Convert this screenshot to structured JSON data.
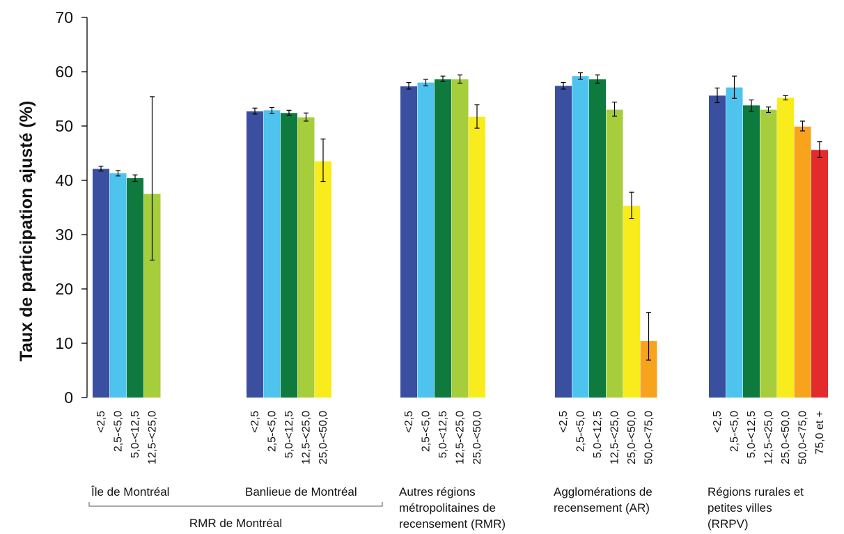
{
  "chart_data": {
    "type": "bar",
    "title": "",
    "xlabel": "",
    "ylabel": "Taux de participation ajusté (%)",
    "ylim": [
      0,
      70
    ],
    "yticks": [
      0,
      10,
      20,
      30,
      40,
      50,
      60,
      70
    ],
    "grid": false,
    "legend": "none",
    "colors": {
      "<2,5": "#3a4fa0",
      "2,5-<5,0": "#4ec3ee",
      "5,0-<12,5": "#0f7a3d",
      "12,5-<25,0": "#a6cd3c",
      "25,0-<50,0": "#f9ec1c",
      "50,0-<75,0": "#f7a31c",
      "75,0 et +": "#e32b2b"
    },
    "groups": [
      {
        "label_lines": [
          "Île de Montréal"
        ],
        "bars": [
          {
            "category": "<2,5",
            "value": 42.1,
            "err_low": 41.7,
            "err_high": 42.6
          },
          {
            "category": "2,5-<5,0",
            "value": 41.3,
            "err_low": 40.8,
            "err_high": 41.8
          },
          {
            "category": "5,0-<12,5",
            "value": 40.4,
            "err_low": 39.8,
            "err_high": 41.0
          },
          {
            "category": "12,5-<25,0",
            "value": 37.5,
            "err_low": 25.3,
            "err_high": 55.4
          }
        ]
      },
      {
        "label_lines": [
          "Banlieue de Montréal"
        ],
        "bars": [
          {
            "category": "<2,5",
            "value": 52.7,
            "err_low": 52.2,
            "err_high": 53.3
          },
          {
            "category": "2,5-<5,0",
            "value": 52.9,
            "err_low": 52.3,
            "err_high": 53.4
          },
          {
            "category": "5,0-<12,5",
            "value": 52.4,
            "err_low": 52.0,
            "err_high": 52.9
          },
          {
            "category": "12,5-<25,0",
            "value": 51.6,
            "err_low": 50.9,
            "err_high": 52.4
          },
          {
            "category": "25,0-<50,0",
            "value": 43.5,
            "err_low": 39.8,
            "err_high": 47.6
          }
        ]
      },
      {
        "label_lines": [
          "Autres régions",
          "métropolitaines de",
          "recensement (RMR)"
        ],
        "bars": [
          {
            "category": "<2,5",
            "value": 57.3,
            "err_low": 56.8,
            "err_high": 58.0
          },
          {
            "category": "2,5-<5,0",
            "value": 58.0,
            "err_low": 57.4,
            "err_high": 58.6
          },
          {
            "category": "5,0-<12,5",
            "value": 58.6,
            "err_low": 58.2,
            "err_high": 59.2
          },
          {
            "category": "12,5-<25,0",
            "value": 58.6,
            "err_low": 57.9,
            "err_high": 59.4
          },
          {
            "category": "25,0-<50,0",
            "value": 51.7,
            "err_low": 49.6,
            "err_high": 53.9
          }
        ]
      },
      {
        "label_lines": [
          "Agglomérations de",
          "recensement (AR)"
        ],
        "bars": [
          {
            "category": "<2,5",
            "value": 57.4,
            "err_low": 56.8,
            "err_high": 58.0
          },
          {
            "category": "2,5-<5,0",
            "value": 59.2,
            "err_low": 58.6,
            "err_high": 59.8
          },
          {
            "category": "5,0-<12,5",
            "value": 58.6,
            "err_low": 57.9,
            "err_high": 59.4
          },
          {
            "category": "12,5-<25,0",
            "value": 53.0,
            "err_low": 51.8,
            "err_high": 54.4
          },
          {
            "category": "25,0-<50,0",
            "value": 35.3,
            "err_low": 33.0,
            "err_high": 37.8
          },
          {
            "category": "50,0-<75,0",
            "value": 10.4,
            "err_low": 6.9,
            "err_high": 15.7
          }
        ]
      },
      {
        "label_lines": [
          "Régions rurales et",
          "petites villes",
          "(RRPV)"
        ],
        "bars": [
          {
            "category": "<2,5",
            "value": 55.6,
            "err_low": 54.3,
            "err_high": 57.0
          },
          {
            "category": "2,5-<5,0",
            "value": 57.1,
            "err_low": 55.1,
            "err_high": 59.2
          },
          {
            "category": "5,0-<12,5",
            "value": 53.8,
            "err_low": 52.7,
            "err_high": 54.8
          },
          {
            "category": "12,5-<25,0",
            "value": 53.0,
            "err_low": 52.5,
            "err_high": 53.5
          },
          {
            "category": "25,0-<50,0",
            "value": 55.2,
            "err_low": 54.8,
            "err_high": 55.6
          },
          {
            "category": "50,0-<75,0",
            "value": 49.9,
            "err_low": 49.1,
            "err_high": 50.9
          },
          {
            "category": "75,0 et +",
            "value": 45.6,
            "err_low": 44.2,
            "err_high": 47.1
          }
        ]
      }
    ],
    "super_groups": [
      {
        "label": "RMR de Montréal",
        "spans_groups": [
          0,
          1
        ]
      }
    ]
  }
}
